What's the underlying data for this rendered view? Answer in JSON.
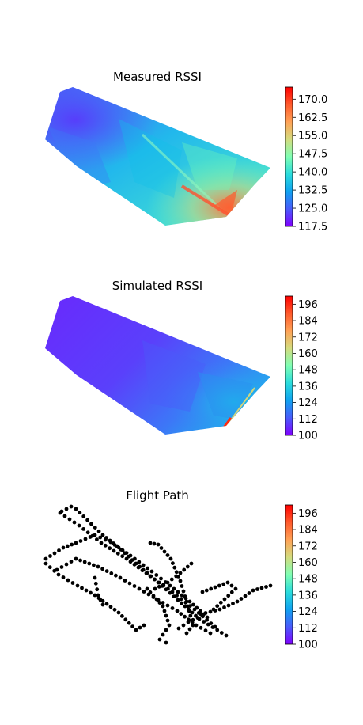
{
  "chart_data": [
    {
      "type": "heatmap",
      "title": "Measured RSSI",
      "colormap": "rainbow",
      "colorbar": {
        "min": 117.5,
        "max": 175.0,
        "ticks": [
          "117.5",
          "125.0",
          "132.5",
          "140.0",
          "147.5",
          "155.0",
          "162.5",
          "170.0"
        ]
      },
      "axes_visible": false
    },
    {
      "type": "heatmap",
      "title": "Simulated RSSI",
      "colormap": "rainbow",
      "colorbar": {
        "min": 100,
        "max": 202,
        "ticks": [
          "100",
          "112",
          "124",
          "136",
          "148",
          "160",
          "172",
          "184",
          "196"
        ]
      },
      "axes_visible": false
    },
    {
      "type": "scatter",
      "title": "Flight Path",
      "marker_color": "#000000",
      "colormap": "rainbow",
      "colorbar": {
        "min": 100,
        "max": 202,
        "ticks": [
          "100",
          "112",
          "124",
          "136",
          "148",
          "160",
          "172",
          "184",
          "196"
        ]
      },
      "axes_visible": false
    }
  ]
}
